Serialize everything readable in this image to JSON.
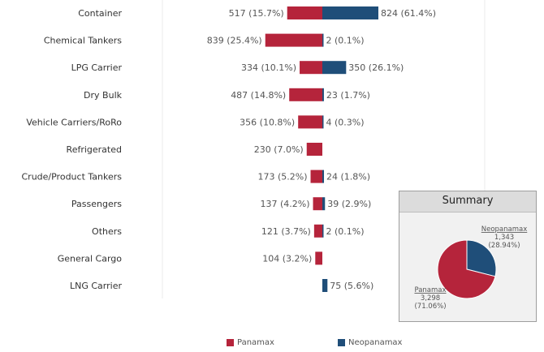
{
  "colors": {
    "panamax": "#b5243b",
    "neopanamax": "#1f4e79"
  },
  "chart_data": [
    {
      "type": "bar",
      "orientation": "diverging-horizontal",
      "categories": [
        "Container",
        "Chemical Tankers",
        "LPG Carrier",
        "Dry Bulk",
        "Vehicle Carriers/RoRo",
        "Refrigerated",
        "Crude/Product Tankers",
        "Passengers",
        "Others",
        "General Cargo",
        "LNG Carrier"
      ],
      "series": [
        {
          "name": "Panamax",
          "values": [
            517,
            839,
            334,
            487,
            356,
            230,
            173,
            137,
            121,
            104,
            null
          ],
          "labels": [
            "517 (15.7%)",
            "839 (25.4%)",
            "334 (10.1%)",
            "487 (14.8%)",
            "356 (10.8%)",
            "230 (7.0%)",
            "173 (5.2%)",
            "137 (4.2%)",
            "121 (3.7%)",
            "104 (3.2%)",
            null
          ]
        },
        {
          "name": "Neopanamax",
          "values": [
            824,
            2,
            350,
            23,
            4,
            null,
            24,
            39,
            2,
            null,
            75
          ],
          "labels": [
            "824 (61.4%)",
            "2 (0.1%)",
            "350 (26.1%)",
            "23 (1.7%)",
            "4 (0.3%)",
            null,
            "24 (1.8%)",
            "39 (2.9%)",
            "2 (0.1%)",
            null,
            "75 (5.6%)"
          ]
        }
      ],
      "legend": {
        "position": "bottom",
        "items": [
          "Panamax",
          "Neopanamax"
        ]
      }
    },
    {
      "type": "pie",
      "title": "Summary",
      "slices": [
        {
          "name": "Neopanamax",
          "value": 1343,
          "value_label": "1,343",
          "percent_label": "(28.94%)"
        },
        {
          "name": "Panamax",
          "value": 3298,
          "value_label": "3,298",
          "percent_label": "(71.06%)"
        }
      ]
    }
  ]
}
